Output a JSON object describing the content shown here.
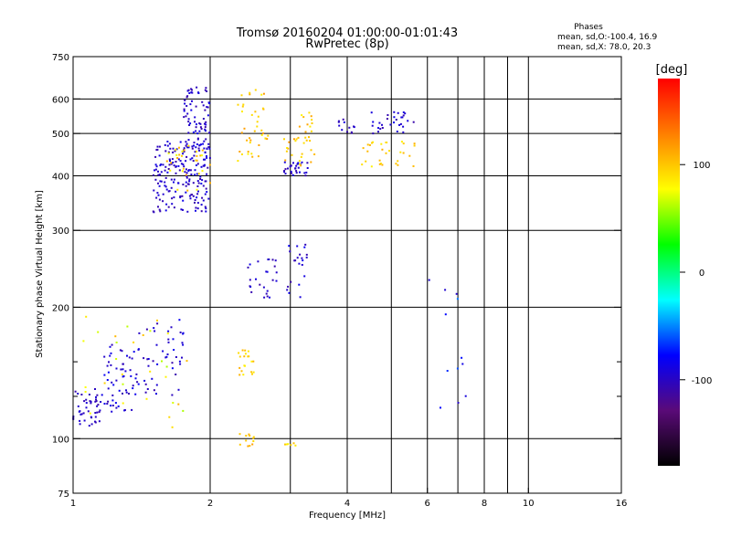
{
  "chart_data": {
    "type": "scatter",
    "title_line1": "Tromsø 20160204 01:00:00-01:01:43",
    "title_line2": "RwPretec (8p)",
    "xlabel": "Frequency [MHz]",
    "ylabel": "Stationary phase Virtual Height [km]",
    "x_scale": "log",
    "y_scale": "log",
    "xlim": [
      1,
      16
    ],
    "ylim": [
      75,
      750
    ],
    "x_ticks": [
      1,
      2,
      4,
      6,
      8,
      10,
      16
    ],
    "x_tick_labels": [
      "1",
      "2",
      "4",
      "6",
      "8",
      "10",
      "16"
    ],
    "x_minor_gridlines": [
      3,
      5,
      7,
      9
    ],
    "y_ticks": [
      75,
      100,
      200,
      300,
      400,
      500,
      600,
      750
    ],
    "y_tick_labels": [
      "75",
      "100",
      "200",
      "300",
      "400",
      "500",
      "600",
      "750"
    ],
    "y_minor_ticks": [
      125,
      150
    ],
    "grid": true,
    "legend": {
      "title": "Phases",
      "line1": "mean, sd,O:-100.4, 16.9",
      "line2": "mean, sd,X:  78.0, 20.3",
      "placement": "top-right"
    },
    "colorbar": {
      "label": "[deg]",
      "range": [
        -180,
        180
      ],
      "ticks": [
        100,
        0,
        -100
      ],
      "tick_labels": [
        "100",
        "0",
        "-100"
      ],
      "colormap": [
        "#000000",
        "#5a0a78",
        "#0000ff",
        "#00ffff",
        "#00ff00",
        "#ffff00",
        "#ff7f00",
        "#ff0000"
      ]
    },
    "clusters": [
      {
        "x": [
          1.0,
          1.15
        ],
        "y": [
          105,
          130
        ],
        "n": 45,
        "phase": [
          -110,
          -90
        ]
      },
      {
        "x": [
          1.15,
          1.35
        ],
        "y": [
          115,
          165
        ],
        "n": 50,
        "phase": [
          -110,
          -80
        ]
      },
      {
        "x": [
          1.35,
          1.75
        ],
        "y": [
          125,
          190
        ],
        "n": 55,
        "phase": [
          -110,
          -80
        ]
      },
      {
        "x": [
          1.05,
          1.8
        ],
        "y": [
          105,
          195
        ],
        "n": 30,
        "phase": [
          60,
          110
        ]
      },
      {
        "x": [
          1.5,
          2.0
        ],
        "y": [
          330,
          480
        ],
        "n": 190,
        "phase": [
          -110,
          -85
        ]
      },
      {
        "x": [
          1.75,
          2.0
        ],
        "y": [
          460,
          640
        ],
        "n": 80,
        "phase": [
          -110,
          -85
        ]
      },
      {
        "x": [
          1.6,
          2.0
        ],
        "y": [
          370,
          470
        ],
        "n": 30,
        "phase": [
          70,
          120
        ]
      },
      {
        "x": [
          2.3,
          2.7
        ],
        "y": [
          430,
          640
        ],
        "n": 40,
        "phase": [
          80,
          120
        ]
      },
      {
        "x": [
          2.4,
          2.8
        ],
        "y": [
          210,
          260
        ],
        "n": 25,
        "phase": [
          -110,
          -85
        ]
      },
      {
        "x": [
          2.3,
          2.5
        ],
        "y": [
          140,
          160
        ],
        "n": 20,
        "phase": [
          80,
          110
        ]
      },
      {
        "x": [
          2.3,
          2.5
        ],
        "y": [
          96,
          104
        ],
        "n": 12,
        "phase": [
          90,
          120
        ]
      },
      {
        "x": [
          2.9,
          3.3
        ],
        "y": [
          400,
          430
        ],
        "n": 30,
        "phase": [
          -110,
          -85
        ]
      },
      {
        "x": [
          2.9,
          3.4
        ],
        "y": [
          420,
          560
        ],
        "n": 35,
        "phase": [
          80,
          120
        ]
      },
      {
        "x": [
          2.95,
          3.3
        ],
        "y": [
          210,
          290
        ],
        "n": 22,
        "phase": [
          -110,
          -80
        ]
      },
      {
        "x": [
          2.9,
          3.1
        ],
        "y": [
          96,
          100
        ],
        "n": 6,
        "phase": [
          80,
          110
        ]
      },
      {
        "x": [
          3.8,
          4.2
        ],
        "y": [
          500,
          540
        ],
        "n": 12,
        "phase": [
          -110,
          -90
        ]
      },
      {
        "x": [
          4.5,
          5.6
        ],
        "y": [
          500,
          560
        ],
        "n": 30,
        "phase": [
          -110,
          -85
        ]
      },
      {
        "x": [
          4.3,
          5.7
        ],
        "y": [
          420,
          480
        ],
        "n": 30,
        "phase": [
          80,
          110
        ]
      },
      {
        "x": [
          6.0,
          7.3
        ],
        "y": [
          115,
          250
        ],
        "n": 12,
        "phase": [
          -100,
          -40
        ]
      }
    ]
  }
}
